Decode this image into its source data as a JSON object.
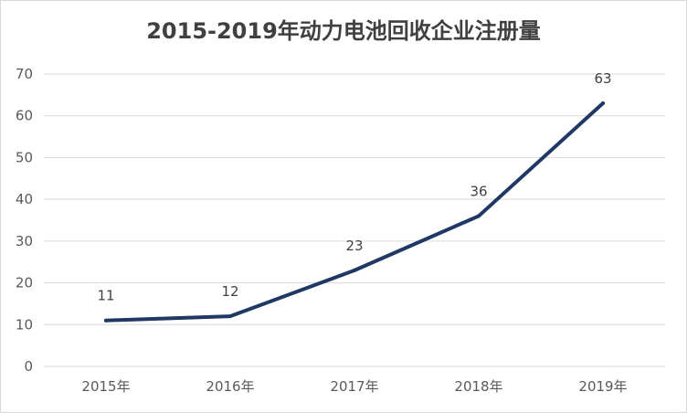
{
  "chart_data": {
    "type": "line",
    "title": "2015-2019年动力电池回收企业注册量",
    "xlabel": "",
    "ylabel": "",
    "categories": [
      "2015年",
      "2016年",
      "2017年",
      "2018年",
      "2019年"
    ],
    "series": [
      {
        "values": [
          11,
          12,
          23,
          36,
          63
        ]
      }
    ],
    "data_labels": [
      "11",
      "12",
      "23",
      "36",
      "63"
    ],
    "ylim": [
      0,
      70
    ],
    "yticks": [
      0,
      10,
      20,
      30,
      40,
      50,
      60,
      70
    ],
    "grid": "horizontal",
    "legend": "none",
    "colors": {
      "line": "#1f3864",
      "grid": "#d9d9d9",
      "axis_text": "#595959"
    }
  }
}
